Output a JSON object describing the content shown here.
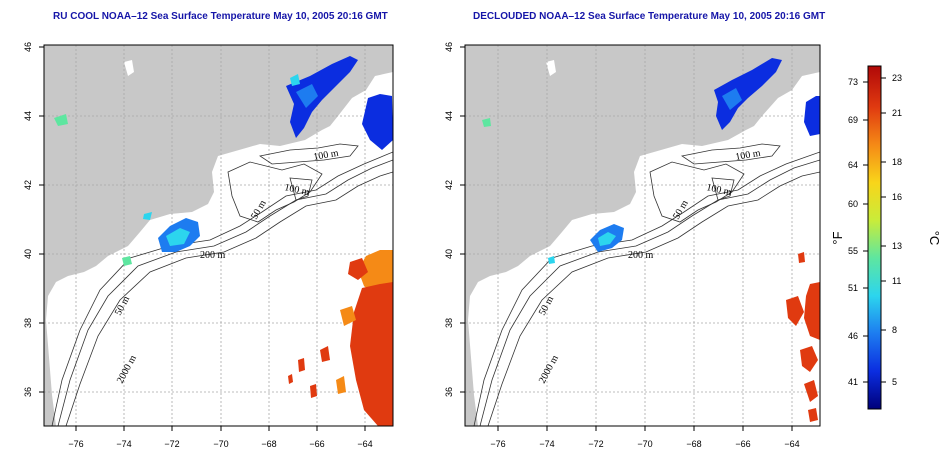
{
  "panels": [
    {
      "title": "RU COOL NOAA–12 Sea Surface Temperature May 10, 2005 20:16 GMT",
      "x_ticks": [
        "−76",
        "−74",
        "−72",
        "−70",
        "−68",
        "−66",
        "−64"
      ],
      "y_ticks": [
        "46",
        "44",
        "42",
        "40",
        "38",
        "36"
      ],
      "contour_labels": [
        "100 m",
        "100 m",
        "50 m",
        "200 m",
        "50 m",
        "2000 m"
      ]
    },
    {
      "title": "DECLOUDED NOAA–12 Sea Surface Temperature May 10, 2005 20:16 GMT",
      "x_ticks": [
        "−76",
        "−74",
        "−72",
        "−70",
        "−68",
        "−66",
        "−64"
      ],
      "y_ticks": [
        "46",
        "44",
        "42",
        "40",
        "38",
        "36"
      ],
      "contour_labels": [
        "100 m",
        "100 m",
        "50 m",
        "200 m",
        "50 m",
        "2000 m"
      ]
    }
  ],
  "colorbar": {
    "fahrenheit_ticks": [
      "73",
      "69",
      "64",
      "60",
      "55",
      "51",
      "46",
      "41"
    ],
    "celsius_ticks": [
      "23",
      "21",
      "18",
      "16",
      "13",
      "11",
      "8",
      "5"
    ],
    "fahrenheit_unit": "°F",
    "celsius_unit": "°C",
    "color_stops": [
      "#00007a",
      "#0b2de0",
      "#1d7cf0",
      "#2cd5ee",
      "#5ee6a0",
      "#c9ec3a",
      "#f8d51a",
      "#f58a16",
      "#e03a10",
      "#b00808"
    ]
  },
  "colors": {
    "land": "#c8c8c8",
    "ocean": "#ffffff",
    "grid": "#a8a8a8",
    "title": "#1515a8",
    "contour": "#333333"
  }
}
